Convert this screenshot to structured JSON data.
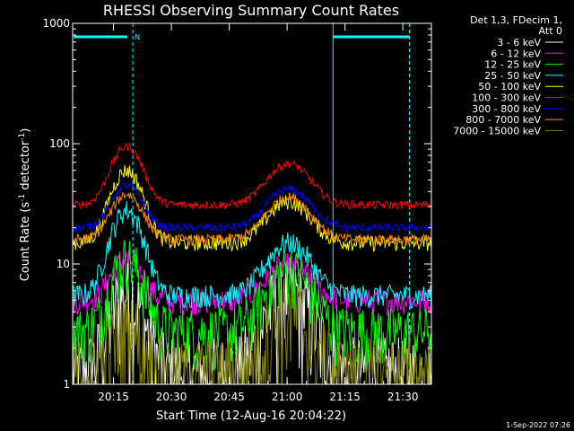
{
  "chart_data": {
    "type": "line",
    "title": "RHESSI Observing Summary Count Rates",
    "xlabel": "Start Time (12-Aug-16 20:04:22)",
    "ylabel_text": "Count Rate (s",
    "ylabel_sup1": "-1",
    "ylabel_mid": " detector",
    "ylabel_sup2": "-1",
    "ylabel_end": ")",
    "yscale": "log",
    "ylim": [
      1,
      1000
    ],
    "xlim_minutes": [
      0,
      93
    ],
    "x_tick_labels": [
      "20:15",
      "20:30",
      "20:45",
      "21:00",
      "21:15",
      "21:30"
    ],
    "x_tick_minutes": [
      10.6,
      25.6,
      40.6,
      55.6,
      70.6,
      85.6
    ],
    "y_tick_labels": [
      "1",
      "10",
      "100",
      "1000"
    ],
    "y_tick_values": [
      1,
      10,
      100,
      1000
    ],
    "legend_header": [
      "Det 1,3, FDecim 1,",
      "Att 0"
    ],
    "annotation_n": "N",
    "timestamp": "1-Sep-2022 07:26",
    "series": [
      {
        "name": "3 - 6 keV",
        "color": "#ffffff",
        "base": 1.3,
        "peak1": 6,
        "peak2": 6,
        "noise": 0.9
      },
      {
        "name": "6 - 12 keV",
        "color": "#ff00ff",
        "base": 5.0,
        "peak1": 11,
        "peak2": 10,
        "noise": 0.25
      },
      {
        "name": "12 - 25 keV",
        "color": "#00ff00",
        "base": 2.8,
        "peak1": 11,
        "peak2": 9,
        "noise": 0.55
      },
      {
        "name": "25 - 50 keV",
        "color": "#00ffff",
        "base": 5.5,
        "peak1": 28,
        "peak2": 15,
        "noise": 0.22
      },
      {
        "name": "50 - 100 keV",
        "color": "#ffff00",
        "base": 15,
        "peak1": 60,
        "peak2": 33,
        "noise": 0.15
      },
      {
        "name": "100 - 300 keV",
        "color": "#ff0000",
        "base": 31,
        "peak1": 95,
        "peak2": 68,
        "noise": 0.08
      },
      {
        "name": "300 - 800 keV",
        "color": "#0000ff",
        "base": 20,
        "peak1": 45,
        "peak2": 42,
        "noise": 0.08
      },
      {
        "name": "800 - 7000 keV",
        "color": "#ff8800",
        "base": 16,
        "peak1": 38,
        "peak2": 36,
        "noise": 0.1
      },
      {
        "name": "7000 - 15000 keV",
        "color": "#808000",
        "base": 1.2,
        "peak1": 3,
        "peak2": 4,
        "noise": 1.0
      }
    ],
    "peak_minutes": [
      14,
      56
    ],
    "night_bar_color": "#00ffff"
  }
}
